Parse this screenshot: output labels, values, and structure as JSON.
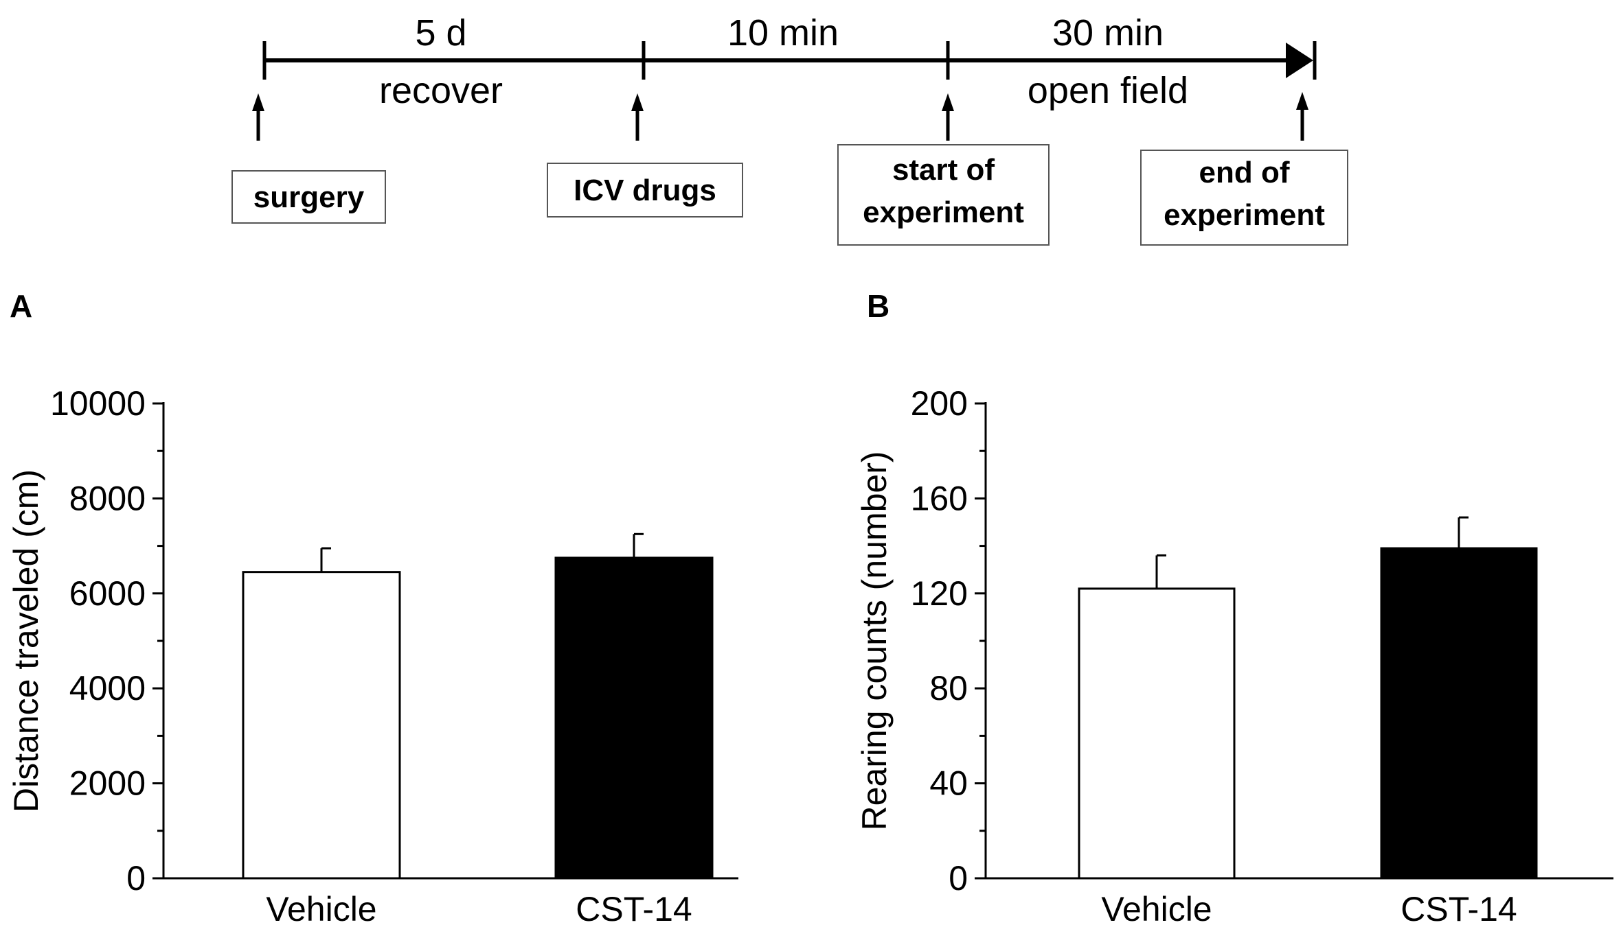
{
  "timeline": {
    "segments": [
      {
        "top": "5 d",
        "bottom": "recover"
      },
      {
        "top": "10 min",
        "bottom": ""
      },
      {
        "top": "30 min",
        "bottom": "open field"
      }
    ],
    "events": [
      {
        "lines": [
          "surgery"
        ]
      },
      {
        "lines": [
          "ICV drugs"
        ]
      },
      {
        "lines": [
          "start of",
          "experiment"
        ]
      },
      {
        "lines": [
          "end of",
          "experiment"
        ]
      }
    ]
  },
  "chart_data": [
    {
      "panel": "A",
      "type": "bar",
      "categories": [
        "Vehicle",
        "CST-14"
      ],
      "values": [
        6450,
        6750
      ],
      "errors": [
        500,
        500
      ],
      "fills": [
        "#ffffff",
        "#000000"
      ],
      "title": "",
      "xlabel": "",
      "ylabel": "Distance traveled (cm)",
      "ylim": [
        0,
        10000
      ],
      "yticks": [
        0,
        2000,
        4000,
        6000,
        8000,
        10000
      ]
    },
    {
      "panel": "B",
      "type": "bar",
      "categories": [
        "Vehicle",
        "CST-14"
      ],
      "values": [
        122,
        139
      ],
      "errors": [
        14,
        13
      ],
      "fills": [
        "#ffffff",
        "#000000"
      ],
      "title": "",
      "xlabel": "",
      "ylabel": "Rearing counts (number)",
      "ylim": [
        0,
        200
      ],
      "yticks": [
        0,
        40,
        80,
        120,
        160,
        200
      ]
    }
  ]
}
